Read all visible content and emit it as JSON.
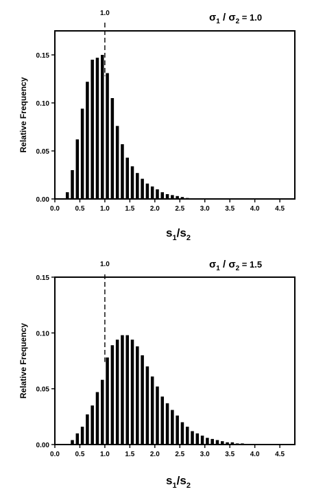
{
  "chart_data": [
    {
      "type": "bar",
      "title": "σ1 / σ2 = 1.0",
      "title_parts": {
        "sigma": "σ",
        "sub1": "1",
        "slash": " / ",
        "sub2": "2",
        "equals": " = 1.0"
      },
      "reference_line": {
        "x": 1.0,
        "label": "1.0",
        "style": "dashed"
      },
      "xlabel": "s1/s2",
      "xlabel_parts": {
        "s": "s",
        "sub1": "1",
        "slash": "/",
        "sub2": "2"
      },
      "ylabel": "Relative Frequency",
      "xlim": [
        0.0,
        4.8
      ],
      "ylim": [
        0.0,
        0.175
      ],
      "xticks": [
        "0.0",
        "0.5",
        "1.0",
        "1.5",
        "2.0",
        "2.5",
        "3.0",
        "3.5",
        "4.0",
        "4.5"
      ],
      "yticks": [
        "0.00",
        "0.05",
        "0.10",
        "0.15"
      ],
      "bin_width": 0.1,
      "x": [
        0.25,
        0.35,
        0.45,
        0.55,
        0.65,
        0.75,
        0.85,
        0.95,
        1.05,
        1.15,
        1.25,
        1.35,
        1.45,
        1.55,
        1.65,
        1.75,
        1.85,
        1.95,
        2.05,
        2.15,
        2.25,
        2.35,
        2.45,
        2.55,
        2.65,
        2.75
      ],
      "values": [
        0.007,
        0.03,
        0.062,
        0.094,
        0.122,
        0.145,
        0.147,
        0.15,
        0.131,
        0.105,
        0.076,
        0.057,
        0.043,
        0.034,
        0.027,
        0.021,
        0.016,
        0.013,
        0.01,
        0.007,
        0.005,
        0.004,
        0.003,
        0.002,
        0.001,
        0.0005
      ],
      "grid": false
    },
    {
      "type": "bar",
      "title": "σ1 / σ2 = 1.5",
      "title_parts": {
        "sigma": "σ",
        "sub1": "1",
        "slash": " / ",
        "sub2": "2",
        "equals": " = 1.5"
      },
      "reference_line": {
        "x": 1.0,
        "label": "1.0",
        "style": "dashed"
      },
      "xlabel": "s1/s2",
      "xlabel_parts": {
        "s": "s",
        "sub1": "1",
        "slash": "/",
        "sub2": "2"
      },
      "ylabel": "Relative Frequency",
      "xlim": [
        0.0,
        4.8
      ],
      "ylim": [
        0.0,
        0.15
      ],
      "xticks": [
        "0.0",
        "0.5",
        "1.0",
        "1.5",
        "2.0",
        "2.5",
        "3.0",
        "3.5",
        "4.0",
        "4.5"
      ],
      "yticks": [
        "0.00",
        "0.05",
        "0.10",
        "0.15"
      ],
      "bin_width": 0.1,
      "x": [
        0.35,
        0.45,
        0.55,
        0.65,
        0.75,
        0.85,
        0.95,
        1.05,
        1.15,
        1.25,
        1.35,
        1.45,
        1.55,
        1.65,
        1.75,
        1.85,
        1.95,
        2.05,
        2.15,
        2.25,
        2.35,
        2.45,
        2.55,
        2.65,
        2.75,
        2.85,
        2.95,
        3.05,
        3.15,
        3.25,
        3.35,
        3.45,
        3.55,
        3.65,
        3.75,
        3.85
      ],
      "values": [
        0.004,
        0.01,
        0.016,
        0.027,
        0.035,
        0.047,
        0.058,
        0.078,
        0.089,
        0.094,
        0.098,
        0.098,
        0.094,
        0.088,
        0.08,
        0.07,
        0.061,
        0.052,
        0.043,
        0.037,
        0.031,
        0.026,
        0.02,
        0.016,
        0.012,
        0.01,
        0.008,
        0.006,
        0.005,
        0.004,
        0.003,
        0.002,
        0.002,
        0.001,
        0.001,
        0.0005
      ],
      "grid": false
    }
  ]
}
